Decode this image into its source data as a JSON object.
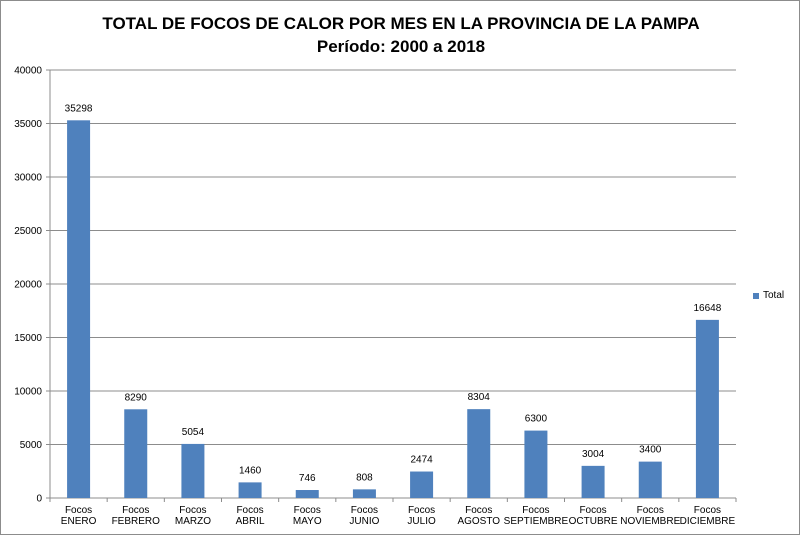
{
  "chart_data": {
    "type": "bar",
    "title": "TOTAL DE FOCOS DE CALOR POR MES EN LA PROVINCIA DE LA PAMPA",
    "subtitle": "Período: 2000 a 2018",
    "xlabel": "",
    "ylabel": "",
    "categories": [
      [
        "Focos",
        "ENERO"
      ],
      [
        "Focos",
        "FEBRERO"
      ],
      [
        "Focos",
        "MARZO"
      ],
      [
        "Focos",
        "ABRIL"
      ],
      [
        "Focos",
        "MAYO"
      ],
      [
        "Focos",
        "JUNIO"
      ],
      [
        "Focos",
        "JULIO"
      ],
      [
        "Focos",
        "AGOSTO"
      ],
      [
        "Focos",
        "SEPTIEMBRE"
      ],
      [
        "Focos",
        "OCTUBRE"
      ],
      [
        "Focos",
        "NOVIEMBRE"
      ],
      [
        "Focos",
        "DICIEMBRE"
      ]
    ],
    "series": [
      {
        "name": "Total",
        "color": "#4f81bd",
        "values": [
          35298,
          8290,
          5054,
          1460,
          746,
          808,
          2474,
          8304,
          6300,
          3004,
          3400,
          16648
        ]
      }
    ],
    "ylim": [
      0,
      40000
    ],
    "yticks": [
      0,
      5000,
      10000,
      15000,
      20000,
      25000,
      30000,
      35000,
      40000
    ],
    "grid": true,
    "legend_position": "right",
    "data_labels": true
  }
}
